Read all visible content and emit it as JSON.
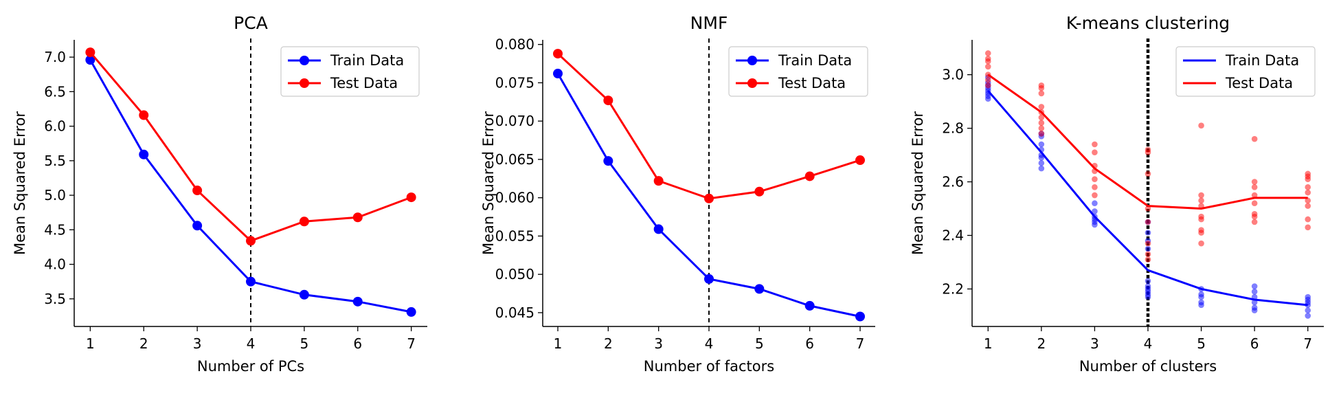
{
  "chart_data": [
    {
      "type": "line",
      "title": "PCA",
      "xlabel": "Number of PCs",
      "ylabel": "Mean Squared Error",
      "x": [
        1,
        2,
        3,
        4,
        5,
        6,
        7
      ],
      "xticks": [
        "1",
        "2",
        "3",
        "4",
        "5",
        "6",
        "7"
      ],
      "xlim": [
        0.7,
        7.3
      ],
      "ylim": [
        3.1,
        7.25
      ],
      "yticks": [
        "3.5",
        "4.0",
        "4.5",
        "5.0",
        "5.5",
        "6.0",
        "6.5",
        "7.0"
      ],
      "vline": 4,
      "markers": true,
      "legend": "top-right",
      "series": [
        {
          "name": "Train Data",
          "color": "#0000ff",
          "values": [
            6.96,
            5.59,
            4.56,
            3.75,
            3.56,
            3.46,
            3.31
          ]
        },
        {
          "name": "Test Data",
          "color": "#ff0000",
          "values": [
            7.07,
            6.16,
            5.07,
            4.34,
            4.62,
            4.68,
            4.97
          ]
        }
      ]
    },
    {
      "type": "line",
      "title": "NMF",
      "xlabel": "Number of factors",
      "ylabel": "Mean Squared Error",
      "x": [
        1,
        2,
        3,
        4,
        5,
        6,
        7
      ],
      "xticks": [
        "1",
        "2",
        "3",
        "4",
        "5",
        "6",
        "7"
      ],
      "xlim": [
        0.7,
        7.3
      ],
      "ylim": [
        0.0432,
        0.0806
      ],
      "yticks": [
        "0.045",
        "0.050",
        "0.055",
        "0.060",
        "0.065",
        "0.070",
        "0.075",
        "0.080"
      ],
      "vline": 4,
      "markers": true,
      "legend": "top-right",
      "series": [
        {
          "name": "Train Data",
          "color": "#0000ff",
          "values": [
            0.0762,
            0.0648,
            0.0559,
            0.0494,
            0.0481,
            0.0459,
            0.0445
          ]
        },
        {
          "name": "Test Data",
          "color": "#ff0000",
          "values": [
            0.0788,
            0.0727,
            0.0622,
            0.0599,
            0.0608,
            0.0628,
            0.0649
          ]
        }
      ]
    },
    {
      "type": "line",
      "title": "K-means clustering",
      "xlabel": "Number of clusters",
      "ylabel": "Mean Squared Error",
      "x": [
        1,
        2,
        3,
        4,
        5,
        6,
        7
      ],
      "xticks": [
        "1",
        "2",
        "3",
        "4",
        "5",
        "6",
        "7"
      ],
      "xlim": [
        0.7,
        7.3
      ],
      "ylim": [
        2.06,
        3.13
      ],
      "yticks": [
        "2.2",
        "2.4",
        "2.6",
        "2.8",
        "3.0"
      ],
      "vline": 4,
      "vline_style": "thick-dotted",
      "markers": false,
      "legend": "top-right",
      "series": [
        {
          "name": "Train Data",
          "color": "#0000ff",
          "values": [
            2.94,
            2.71,
            2.47,
            2.27,
            2.2,
            2.16,
            2.14
          ]
        },
        {
          "name": "Test Data",
          "color": "#ff0000",
          "values": [
            3.0,
            2.86,
            2.65,
            2.51,
            2.5,
            2.54,
            2.54
          ]
        }
      ],
      "scatter": [
        {
          "series": "Train Data",
          "color": "#0000ff",
          "points": [
            [
              1,
              2.91
            ],
            [
              1,
              2.92
            ],
            [
              1,
              2.93
            ],
            [
              1,
              2.94
            ],
            [
              1,
              2.95
            ],
            [
              1,
              2.96
            ],
            [
              1,
              2.97
            ],
            [
              1,
              2.99
            ],
            [
              2,
              2.65
            ],
            [
              2,
              2.67
            ],
            [
              2,
              2.69
            ],
            [
              2,
              2.7
            ],
            [
              2,
              2.72
            ],
            [
              2,
              2.74
            ],
            [
              2,
              2.77
            ],
            [
              2,
              2.78
            ],
            [
              3,
              2.44
            ],
            [
              3,
              2.45
            ],
            [
              3,
              2.46
            ],
            [
              3,
              2.47
            ],
            [
              3,
              2.49
            ],
            [
              3,
              2.52
            ],
            [
              4,
              2.17
            ],
            [
              4,
              2.18
            ],
            [
              4,
              2.19
            ],
            [
              4,
              2.2
            ],
            [
              4,
              2.21
            ],
            [
              4,
              2.23
            ],
            [
              4,
              2.35
            ],
            [
              4,
              2.38
            ],
            [
              4,
              2.41
            ],
            [
              4,
              2.45
            ],
            [
              5,
              2.14
            ],
            [
              5,
              2.15
            ],
            [
              5,
              2.17
            ],
            [
              5,
              2.18
            ],
            [
              5,
              2.2
            ],
            [
              6,
              2.12
            ],
            [
              6,
              2.13
            ],
            [
              6,
              2.15
            ],
            [
              6,
              2.17
            ],
            [
              6,
              2.19
            ],
            [
              6,
              2.21
            ],
            [
              7,
              2.1
            ],
            [
              7,
              2.12
            ],
            [
              7,
              2.14
            ],
            [
              7,
              2.15
            ],
            [
              7,
              2.16
            ],
            [
              7,
              2.17
            ]
          ]
        },
        {
          "series": "Test Data",
          "color": "#ff0000",
          "points": [
            [
              1,
              2.96
            ],
            [
              1,
              2.98
            ],
            [
              1,
              3.0
            ],
            [
              1,
              3.03
            ],
            [
              1,
              3.05
            ],
            [
              1,
              3.06
            ],
            [
              1,
              3.08
            ],
            [
              2,
              2.78
            ],
            [
              2,
              2.8
            ],
            [
              2,
              2.82
            ],
            [
              2,
              2.84
            ],
            [
              2,
              2.86
            ],
            [
              2,
              2.88
            ],
            [
              2,
              2.93
            ],
            [
              2,
              2.95
            ],
            [
              2,
              2.96
            ],
            [
              3,
              2.55
            ],
            [
              3,
              2.58
            ],
            [
              3,
              2.61
            ],
            [
              3,
              2.64
            ],
            [
              3,
              2.66
            ],
            [
              3,
              2.71
            ],
            [
              3,
              2.74
            ],
            [
              4,
              2.31
            ],
            [
              4,
              2.33
            ],
            [
              4,
              2.37
            ],
            [
              4,
              2.45
            ],
            [
              4,
              2.5
            ],
            [
              4,
              2.63
            ],
            [
              4,
              2.71
            ],
            [
              4,
              2.72
            ],
            [
              5,
              2.37
            ],
            [
              5,
              2.41
            ],
            [
              5,
              2.42
            ],
            [
              5,
              2.46
            ],
            [
              5,
              2.47
            ],
            [
              5,
              2.51
            ],
            [
              5,
              2.53
            ],
            [
              5,
              2.55
            ],
            [
              5,
              2.81
            ],
            [
              6,
              2.45
            ],
            [
              6,
              2.47
            ],
            [
              6,
              2.48
            ],
            [
              6,
              2.52
            ],
            [
              6,
              2.55
            ],
            [
              6,
              2.58
            ],
            [
              6,
              2.6
            ],
            [
              6,
              2.76
            ],
            [
              7,
              2.43
            ],
            [
              7,
              2.46
            ],
            [
              7,
              2.51
            ],
            [
              7,
              2.53
            ],
            [
              7,
              2.56
            ],
            [
              7,
              2.58
            ],
            [
              7,
              2.61
            ],
            [
              7,
              2.62
            ],
            [
              7,
              2.63
            ]
          ]
        }
      ]
    }
  ]
}
